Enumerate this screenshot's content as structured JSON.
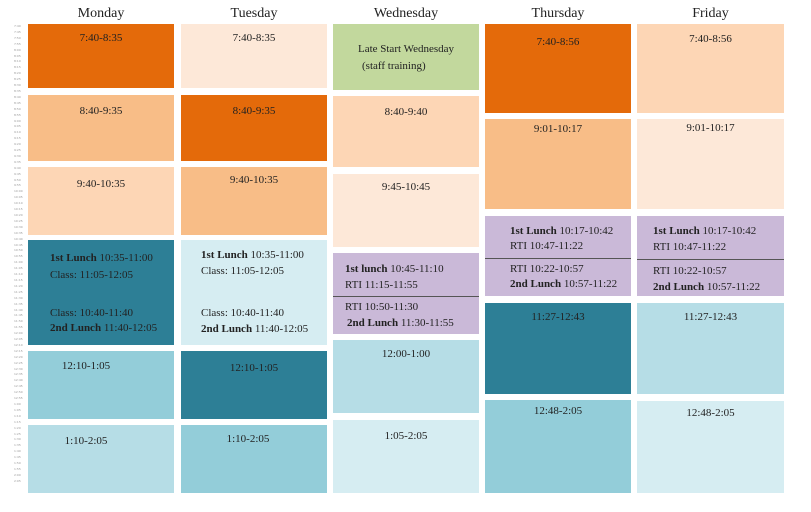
{
  "days": [
    "Monday",
    "Tuesday",
    "Wednesday",
    "Thursday",
    "Friday"
  ],
  "ruler": [
    "7:40",
    "7:45",
    "7:50",
    "7:55",
    "8:00",
    "8:05",
    "8:10",
    "8:15",
    "8:20",
    "8:25",
    "8:30",
    "8:35",
    "8:40",
    "8:45",
    "8:50",
    "8:55",
    "9:00",
    "9:05",
    "9:10",
    "9:15",
    "9:20",
    "9:25",
    "9:30",
    "9:35",
    "9:40",
    "9:45",
    "9:50",
    "9:55",
    "10:00",
    "10:05",
    "10:10",
    "10:15",
    "10:20",
    "10:25",
    "10:30",
    "10:35",
    "10:40",
    "10:45",
    "10:50",
    "10:55",
    "11:00",
    "11:05",
    "11:10",
    "11:15",
    "11:20",
    "11:25",
    "11:30",
    "11:35",
    "11:40",
    "11:45",
    "11:50",
    "11:55",
    "12:00",
    "12:05",
    "12:10",
    "12:15",
    "12:20",
    "12:25",
    "12:30",
    "12:35",
    "12:40",
    "12:45",
    "12:50",
    "12:55",
    "1:00",
    "1:05",
    "1:10",
    "1:15",
    "1:20",
    "1:25",
    "1:30",
    "1:35",
    "1:40",
    "1:45",
    "1:50",
    "1:55",
    "2:00",
    "2:05"
  ],
  "monday": {
    "p1": "7:40-8:35",
    "p2": "8:40-9:35",
    "p3": "9:40-10:35",
    "lunch1_label": "1st Lunch",
    "lunch1_time": "10:35-11:00",
    "class1": "Class: 11:05-12:05",
    "class2": "Class: 10:40-11:40",
    "lunch2_label": "2nd Lunch",
    "lunch2_time": "11:40-12:05",
    "p5": "12:10-1:05",
    "p6": "1:10-2:05"
  },
  "tuesday": {
    "p1": "7:40-8:35",
    "p2": "8:40-9:35",
    "p3": "9:40-10:35",
    "lunch1_label": "1st Lunch",
    "lunch1_time": "10:35-11:00",
    "class1": "Class: 11:05-12:05",
    "class2": "Class: 10:40-11:40",
    "lunch2_label": "2nd Lunch",
    "lunch2_time": "11:40-12:05",
    "p5": "12:10-1:05",
    "p6": "1:10-2:05"
  },
  "wednesday": {
    "late_start_line1": "Late Start Wednesday",
    "late_start_line2": "(staff training)",
    "p2": "8:40-9:40",
    "p3": "9:45-10:45",
    "lunch1_label": "1st lunch",
    "lunch1_time": "10:45-11:10",
    "rti1": "RTI 11:15-11:55",
    "rti2": "RTI 10:50-11:30",
    "lunch2_label": "2nd Lunch",
    "lunch2_time": "11:30-11:55",
    "p5": "12:00-1:00",
    "p6": "1:05-2:05"
  },
  "thursday": {
    "p1": "7:40-8:56",
    "p2": "9:01-10:17",
    "lunch1_label": "1st Lunch",
    "lunch1_time": "10:17-10:42",
    "rti1": "RTI 10:47-11:22",
    "rti2": "RTI 10:22-10:57",
    "lunch2_label": "2nd Lunch",
    "lunch2_time": "10:57-11:22",
    "p4": "11:27-12:43",
    "p5": "12:48-2:05"
  },
  "friday": {
    "p1": "7:40-8:56",
    "p2": "9:01-10:17",
    "lunch1_label": "1st Lunch",
    "lunch1_time": "10:17-10:42",
    "rti1": "RTI 10:47-11:22",
    "rti2": "RTI 10:22-10:57",
    "lunch2_label": "2nd Lunch",
    "lunch2_time": "10:57-11:22",
    "p4": "11:27-12:43",
    "p5": "12:48-2:05"
  },
  "colors": {
    "dark_orange": "#e46a0a",
    "medium_orange": "#f8bd87",
    "light_orange": "#fdd6b5",
    "pale_orange": "#fde8d8",
    "green": "#c2d89d",
    "purple": "#cab9d8",
    "teal": "#2d7f96",
    "blue": "#93cdd9",
    "light_blue": "#b6dde6",
    "pale_blue": "#d6edf2"
  }
}
